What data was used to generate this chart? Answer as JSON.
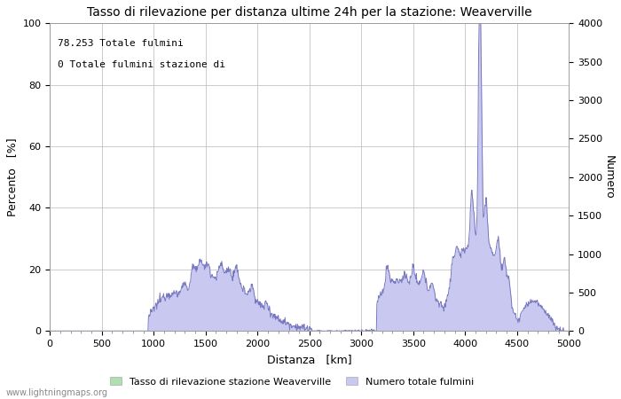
{
  "title": "Tasso di rilevazione per distanza ultime 24h per la stazione: Weaverville",
  "xlabel": "Distanza   [km]",
  "ylabel_left": "Percento   [%]",
  "ylabel_right": "Numero",
  "annotation_line1": "78.253 Totale fulmini",
  "annotation_line2": "0 Totale fulmini stazione di",
  "xlim": [
    0,
    5000
  ],
  "ylim_left": [
    0,
    100
  ],
  "ylim_right": [
    0,
    4000
  ],
  "xticks": [
    0,
    500,
    1000,
    1500,
    2000,
    2500,
    3000,
    3500,
    4000,
    4500,
    5000
  ],
  "yticks_left": [
    0,
    20,
    40,
    60,
    80,
    100
  ],
  "yticks_right": [
    0,
    500,
    1000,
    1500,
    2000,
    2500,
    3000,
    3500,
    4000
  ],
  "legend_label_green": "Tasso di rilevazione stazione Weaverville",
  "legend_label_blue": "Numero totale fulmini",
  "fill_color_blue": "#c8c8f0",
  "line_color_blue": "#7878c0",
  "fill_color_green": "#b0e0b0",
  "line_color_green": "#70c070",
  "background_color": "#ffffff",
  "grid_color": "#b8b8b8",
  "watermark": "www.lightningmaps.org",
  "title_fontsize": 10,
  "axis_label_fontsize": 9,
  "tick_fontsize": 8,
  "annotation_fontsize": 8
}
